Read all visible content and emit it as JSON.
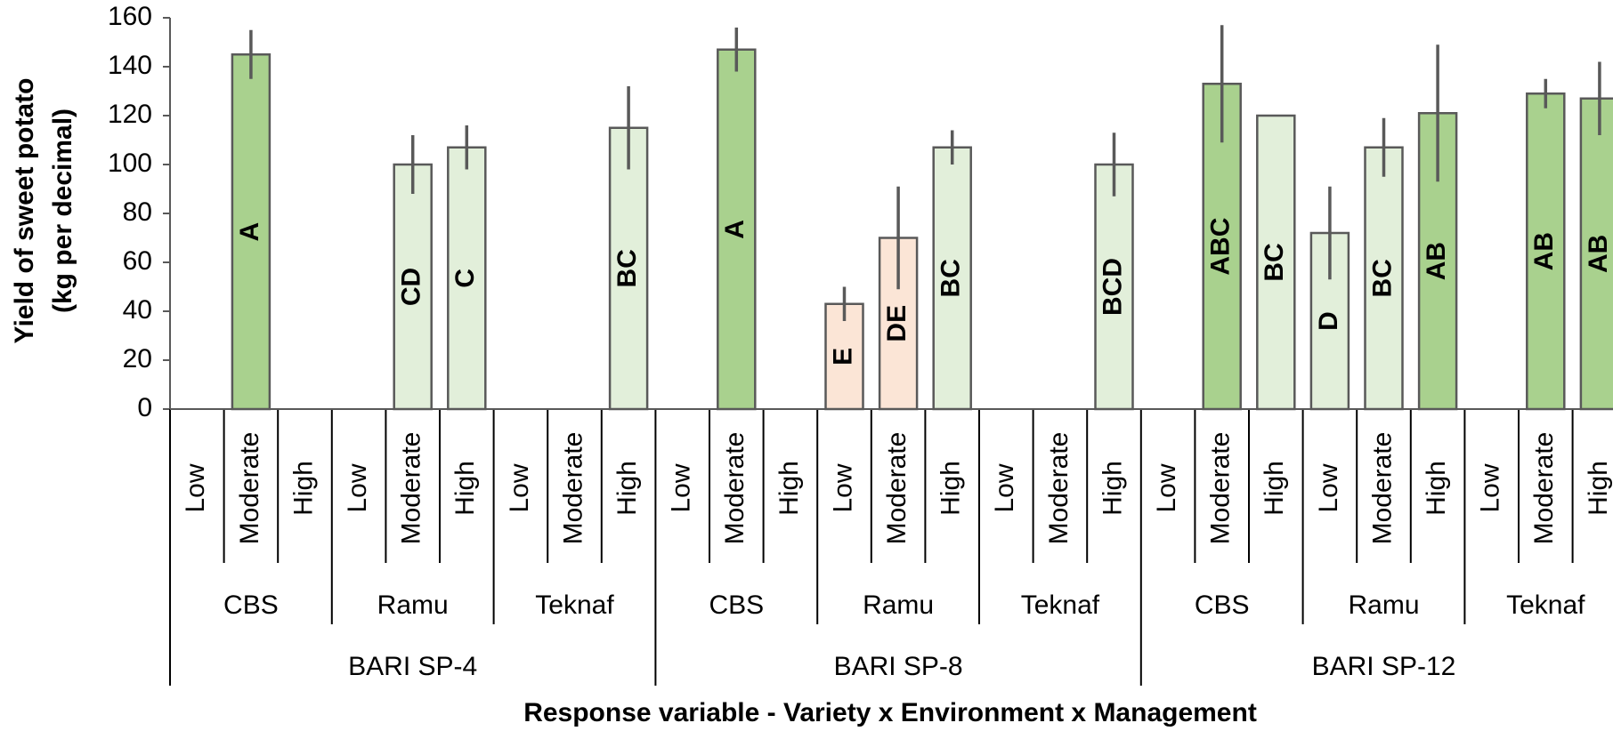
{
  "chart_data": {
    "type": "bar",
    "ylabel": [
      "Yield of sweet potato",
      "(kg per decimal)"
    ],
    "xlabel": "Response variable - Variety x Environment x Management",
    "categories": [
      "Low",
      "Moderate",
      "High",
      "Low",
      "Moderate",
      "High",
      "Low",
      "Moderate",
      "High",
      "Low",
      "Moderate",
      "High",
      "Low",
      "Moderate",
      "High",
      "Low",
      "Moderate",
      "High",
      "Low",
      "Moderate",
      "High",
      "Low",
      "Moderate",
      "High",
      "Low",
      "Moderate",
      "High"
    ],
    "environments": [
      "CBS",
      "Ramu",
      "Teknaf",
      "CBS",
      "Ramu",
      "Teknaf",
      "CBS",
      "Ramu",
      "Teknaf"
    ],
    "varieties": [
      "BARI SP-4",
      "BARI SP-8",
      "BARI SP-12"
    ],
    "values": [
      null,
      145,
      null,
      null,
      100,
      107,
      null,
      null,
      115,
      null,
      147,
      null,
      43,
      70,
      107,
      null,
      null,
      100,
      null,
      133,
      120,
      72,
      107,
      121,
      null,
      129,
      127
    ],
    "errors": [
      null,
      10,
      null,
      null,
      12,
      9,
      null,
      null,
      17,
      null,
      9,
      null,
      7,
      21,
      7,
      null,
      null,
      13,
      null,
      24,
      null,
      19,
      12,
      28,
      null,
      6,
      15
    ],
    "letters": [
      null,
      "A",
      null,
      null,
      "CD",
      "C",
      null,
      null,
      "BC",
      null,
      "A",
      null,
      "E",
      "DE",
      "BC",
      null,
      null,
      "BCD",
      null,
      "ABC",
      "BC",
      "D",
      "BC",
      "AB",
      null,
      "AB",
      "AB"
    ],
    "colors": [
      null,
      "#a9d18e",
      null,
      null,
      "#e2efda",
      "#e2efda",
      null,
      null,
      "#e2efda",
      null,
      "#a9d18e",
      null,
      "#fbe5d6",
      "#fbe5d6",
      "#e2efda",
      null,
      null,
      "#e2efda",
      null,
      "#a9d18e",
      "#e2efda",
      "#e2efda",
      "#e2efda",
      "#a9d18e",
      null,
      "#a9d18e",
      "#a9d18e"
    ],
    "ylim": [
      0,
      160
    ],
    "yticks": [
      0,
      20,
      40,
      60,
      80,
      100,
      120,
      140,
      160
    ]
  }
}
